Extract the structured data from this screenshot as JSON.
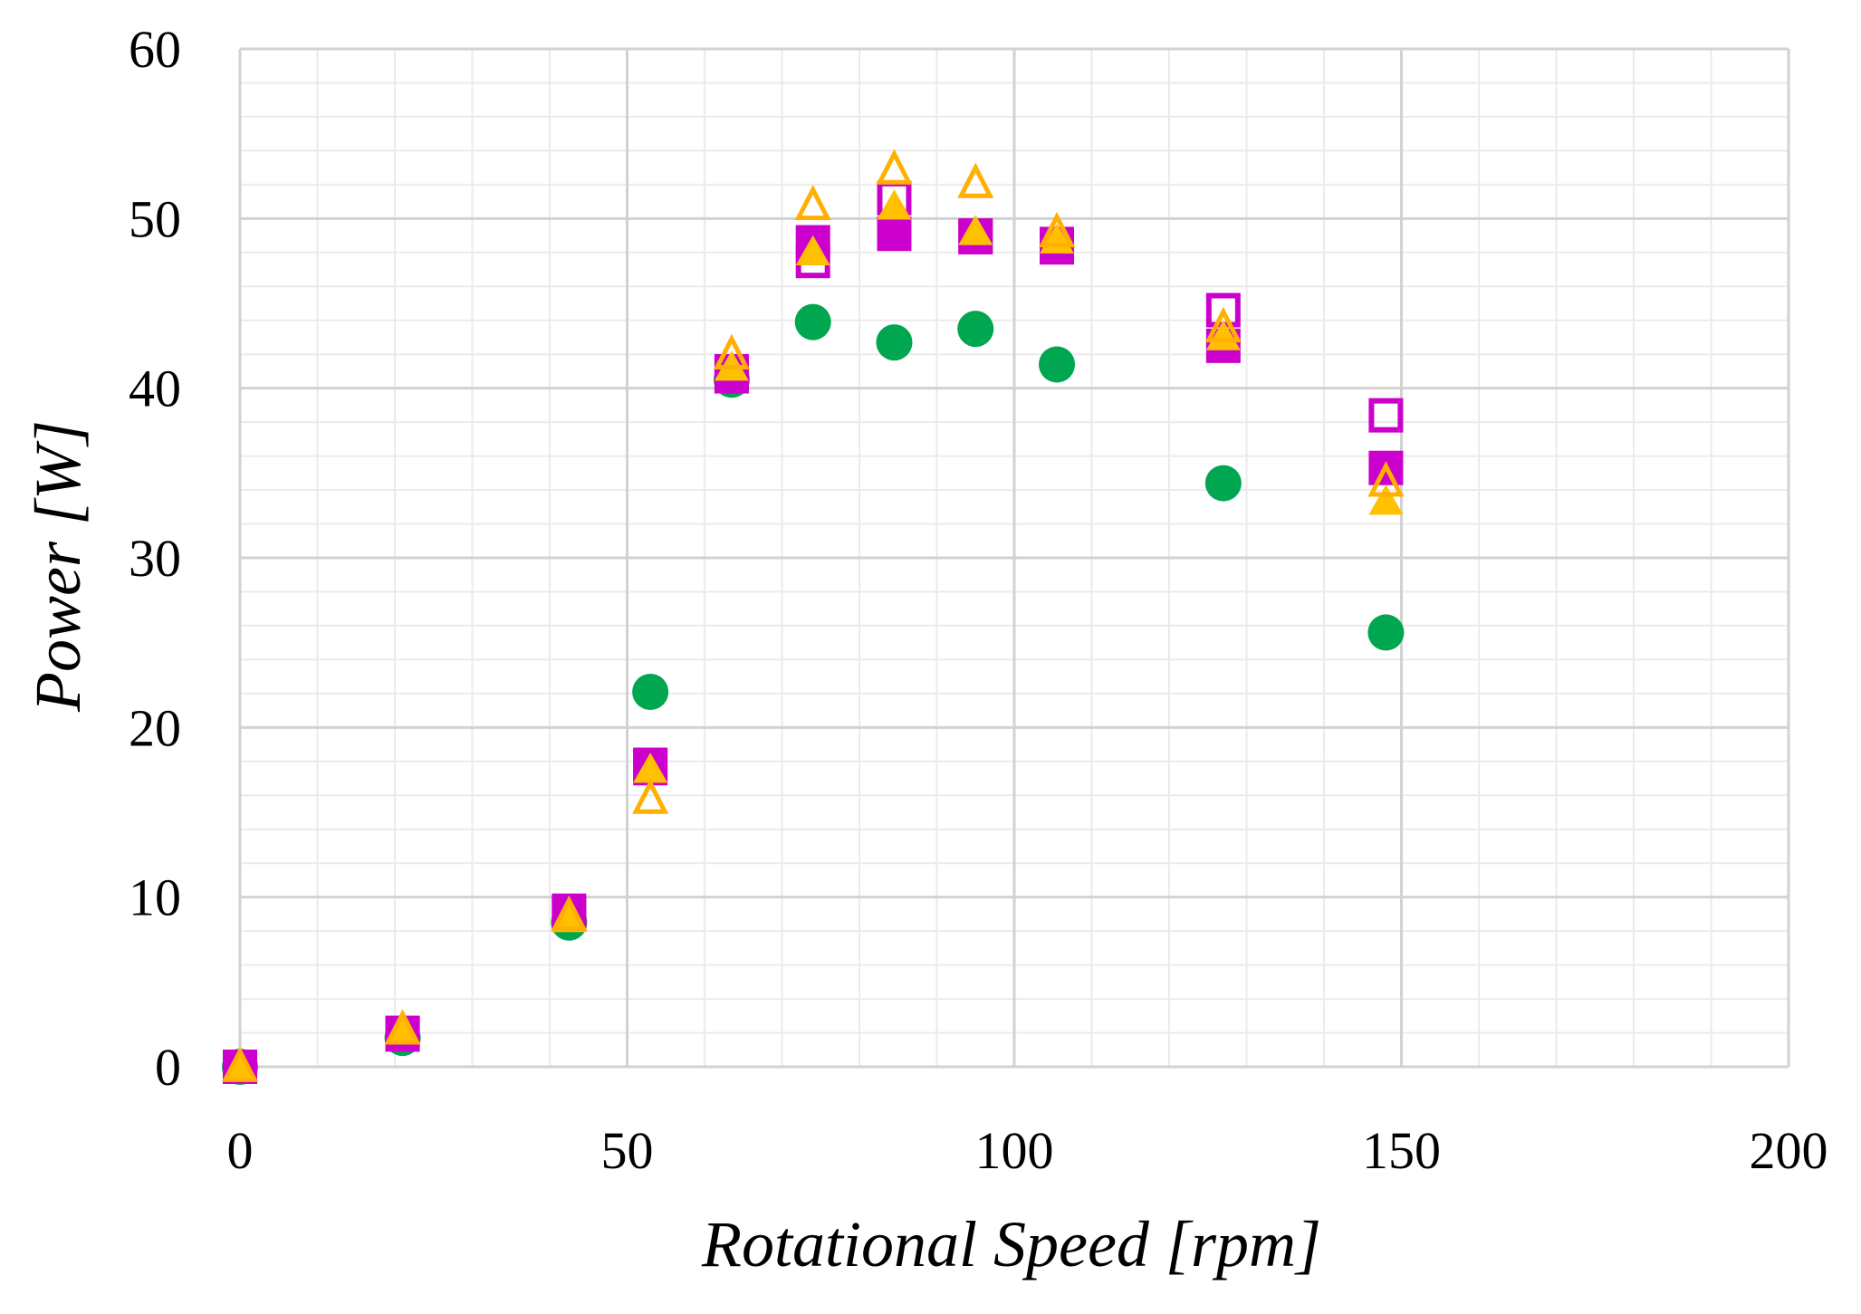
{
  "chart_data": {
    "type": "scatter",
    "title": "",
    "xlabel": "Rotational Speed [rpm]",
    "ylabel": "Power [W]",
    "xlim": [
      0,
      200
    ],
    "ylim": [
      0,
      60
    ],
    "x_ticks": [
      0,
      50,
      100,
      150,
      200
    ],
    "y_ticks": [
      0,
      10,
      20,
      30,
      40,
      50,
      60
    ],
    "x_minor_step": 10,
    "y_minor_step": 2,
    "grid": true,
    "legend": "none",
    "series": [
      {
        "name": "series-1",
        "marker": "circle-filled",
        "color": "#00A650",
        "x": [
          0,
          21,
          42.5,
          53,
          63.5,
          74,
          84.5,
          95,
          105.5,
          127,
          148
        ],
        "y": [
          0,
          1.7,
          8.5,
          22.1,
          40.5,
          43.9,
          42.7,
          43.5,
          41.4,
          34.4,
          25.6
        ]
      },
      {
        "name": "series-2",
        "marker": "square-filled",
        "color": "#CC00CC",
        "x": [
          0,
          21,
          42.5,
          53,
          63.5,
          74,
          84.5,
          95,
          105.5,
          127,
          148
        ],
        "y": [
          0,
          1.9,
          9.2,
          17.8,
          40.7,
          48.6,
          49.1,
          48.9,
          48.5,
          42.5,
          35.3
        ]
      },
      {
        "name": "series-3",
        "marker": "square-open",
        "color": "#CC00CC",
        "x": [
          0,
          21,
          42.5,
          53,
          63.5,
          74,
          84.5,
          95,
          105.5,
          127,
          148
        ],
        "y": [
          0,
          2.0,
          9.0,
          17.6,
          41.0,
          47.5,
          51.2,
          49.0,
          48.3,
          44.6,
          38.4
        ]
      },
      {
        "name": "series-4",
        "marker": "triangle-filled",
        "color": "#FFC000",
        "x": [
          0,
          21,
          42.5,
          53,
          63.5,
          74,
          84.5,
          95,
          105.5,
          127,
          148
        ],
        "y": [
          0,
          2.1,
          8.7,
          17.5,
          41.2,
          48.0,
          50.7,
          49.2,
          48.7,
          43.0,
          33.3
        ]
      },
      {
        "name": "series-5",
        "marker": "triangle-open",
        "color": "#FFB000",
        "x": [
          0,
          21,
          42.5,
          53,
          63.5,
          74,
          84.5,
          95,
          105.5,
          127,
          148
        ],
        "y": [
          0,
          2.2,
          8.9,
          15.8,
          42.0,
          50.8,
          52.9,
          52.1,
          49.2,
          43.6,
          34.5
        ]
      }
    ]
  }
}
